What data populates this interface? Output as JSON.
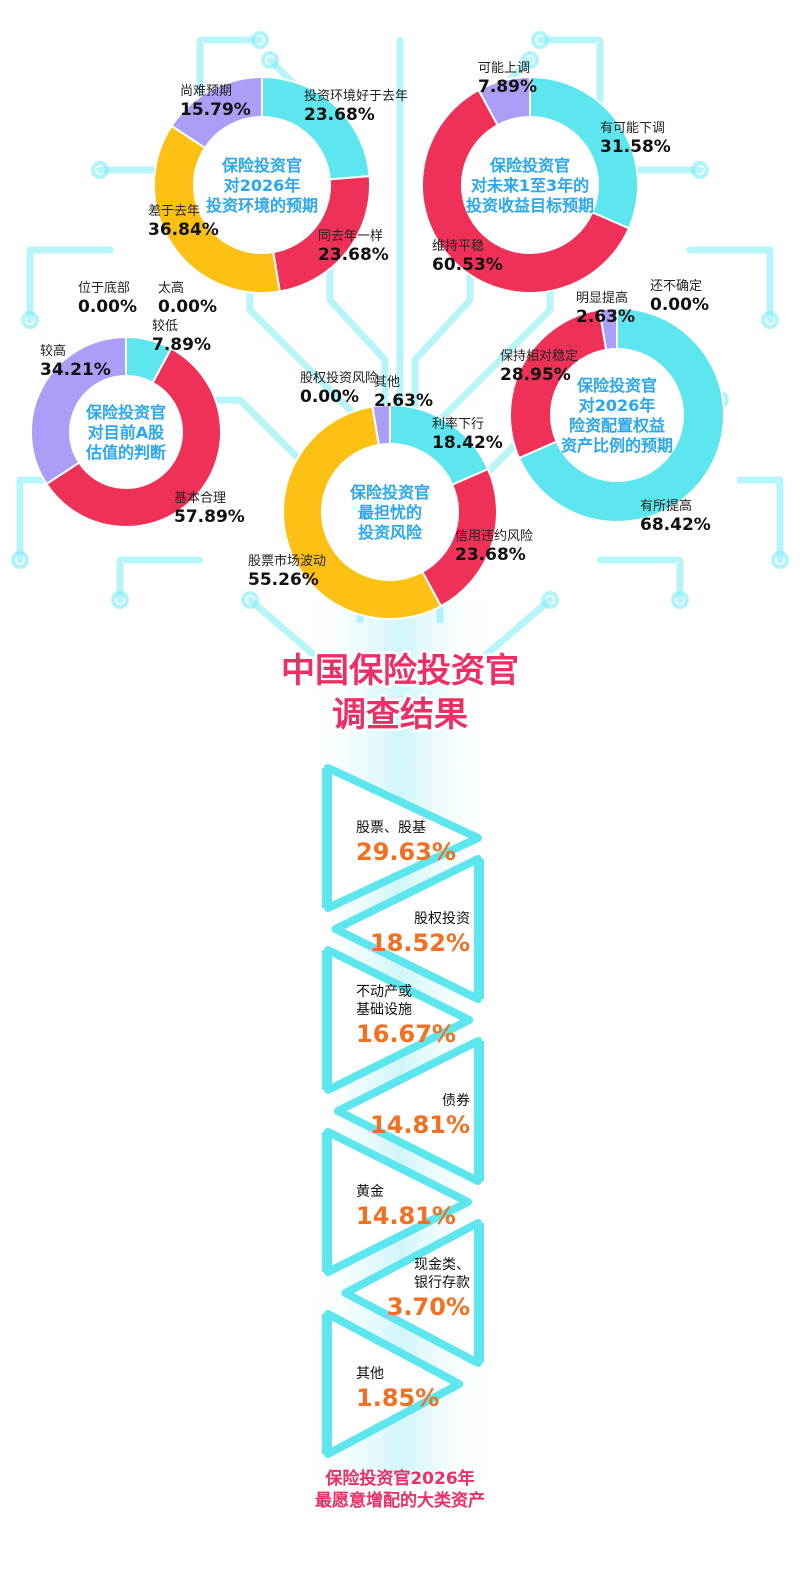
{
  "title": {
    "line1": "中国保险投资官",
    "line2": "调查结果"
  },
  "footer": {
    "line1": "保险投资官2026年",
    "line2": "最愿意增配的大类资产"
  },
  "colors": {
    "cyan": "#5ee6ee",
    "red": "#ef3158",
    "yellow": "#fcc114",
    "purple": "#ab9ef7",
    "pink_title": "#ee2f66",
    "orange_value": "#f37021",
    "blue_center": "#2aa7ee",
    "trunk": "#bff3f8"
  },
  "chart_data": [
    {
      "type": "pie",
      "center_text": [
        "保险投资官",
        "对2026年",
        "投资环境的预期"
      ],
      "slices": [
        {
          "label": "投资环境好于去年",
          "value": 23.68,
          "display": "23.68%",
          "color": "#5ee6ee"
        },
        {
          "label": "同去年一样",
          "value": 23.68,
          "display": "23.68%",
          "color": "#ef3158"
        },
        {
          "label": "差于去年",
          "value": 36.84,
          "display": "36.84%",
          "color": "#fcc114"
        },
        {
          "label": "尚难预期",
          "value": 15.79,
          "display": "15.79%",
          "color": "#ab9ef7"
        }
      ]
    },
    {
      "type": "pie",
      "center_text": [
        "保险投资官",
        "对未来1至3年的",
        "投资收益目标预期"
      ],
      "slices": [
        {
          "label": "有可能下调",
          "value": 31.58,
          "display": "31.58%",
          "color": "#5ee6ee"
        },
        {
          "label": "维持平稳",
          "value": 60.53,
          "display": "60.53%",
          "color": "#ef3158"
        },
        {
          "label": "可能上调",
          "value": 7.89,
          "display": "7.89%",
          "color": "#ab9ef7"
        }
      ]
    },
    {
      "type": "pie",
      "center_text": [
        "保险投资官",
        "对目前A股",
        "估值的判断"
      ],
      "slices": [
        {
          "label": "太高",
          "value": 0.0,
          "display": "0.00%",
          "color": "#5ee6ee"
        },
        {
          "label": "较低",
          "value": 7.89,
          "display": "7.89%",
          "color": "#5ee6ee"
        },
        {
          "label": "基本合理",
          "value": 57.89,
          "display": "57.89%",
          "color": "#ef3158"
        },
        {
          "label": "较高",
          "value": 34.21,
          "display": "34.21%",
          "color": "#ab9ef7"
        },
        {
          "label": "位于底部",
          "value": 0.0,
          "display": "0.00%",
          "color": "#fcc114"
        }
      ]
    },
    {
      "type": "pie",
      "center_text": [
        "保险投资官",
        "最担忧的",
        "投资风险"
      ],
      "slices": [
        {
          "label": "利率下行",
          "value": 18.42,
          "display": "18.42%",
          "color": "#5ee6ee"
        },
        {
          "label": "信用违约风险",
          "value": 23.68,
          "display": "23.68%",
          "color": "#ef3158"
        },
        {
          "label": "股票市场波动",
          "value": 55.26,
          "display": "55.26%",
          "color": "#fcc114"
        },
        {
          "label": "股权投资风险",
          "value": 0.0,
          "display": "0.00%",
          "color": "#fcc114"
        },
        {
          "label": "其他",
          "value": 2.63,
          "display": "2.63%",
          "color": "#ab9ef7"
        }
      ]
    },
    {
      "type": "pie",
      "center_text": [
        "保险投资官",
        "对2026年",
        "险资配置权益",
        "资产比例的预期"
      ],
      "slices": [
        {
          "label": "还不确定",
          "value": 0.0,
          "display": "0.00%",
          "color": "#ab9ef7"
        },
        {
          "label": "有所提高",
          "value": 68.42,
          "display": "68.42%",
          "color": "#5ee6ee"
        },
        {
          "label": "保持相对稳定",
          "value": 28.95,
          "display": "28.95%",
          "color": "#ef3158"
        },
        {
          "label": "明显提高",
          "value": 2.63,
          "display": "2.63%",
          "color": "#ab9ef7"
        }
      ]
    },
    {
      "type": "bar",
      "title": "保险投资官2026年最愿意增配的大类资产",
      "categories": [
        [
          "股票、股基"
        ],
        [
          "股权投资"
        ],
        [
          "不动产或",
          "基础设施"
        ],
        [
          "债券"
        ],
        [
          "黄金"
        ],
        [
          "现金类、",
          "银行存款"
        ],
        [
          "其他"
        ]
      ],
      "values": [
        29.63,
        18.52,
        16.67,
        14.81,
        14.81,
        3.7,
        1.85
      ],
      "display": [
        "29.63%",
        "18.52%",
        "16.67%",
        "14.81%",
        "14.81%",
        "3.70%",
        "1.85%"
      ]
    }
  ]
}
